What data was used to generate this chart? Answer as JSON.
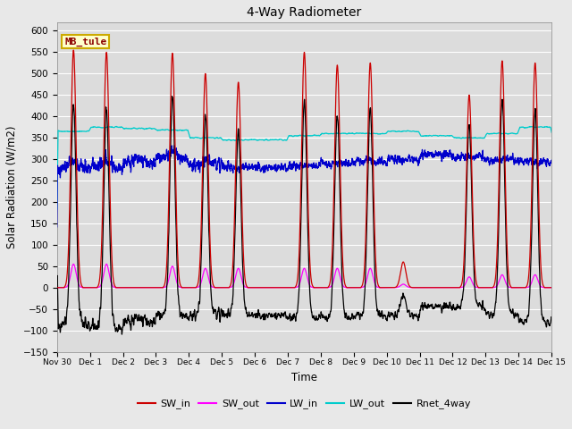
{
  "title": "4-Way Radiometer",
  "xlabel": "Time",
  "ylabel": "Solar Radiation (W/m2)",
  "ylim": [
    -150,
    620
  ],
  "yticks": [
    -150,
    -100,
    -50,
    0,
    50,
    100,
    150,
    200,
    250,
    300,
    350,
    400,
    450,
    500,
    550,
    600
  ],
  "xtick_labels": [
    "Nov 30",
    "Dec 1",
    "Dec 2",
    "Dec 3",
    "Dec 4",
    "Dec 5",
    "Dec 6",
    "Dec 7",
    "Dec 8",
    "Dec 9",
    "Dec 10",
    "Dec 11",
    "Dec 12",
    "Dec 13",
    "Dec 14",
    "Dec 15"
  ],
  "station_label": "MB_tule",
  "colors": {
    "SW_in": "#cc0000",
    "SW_out": "#ff00ff",
    "LW_in": "#0000cc",
    "LW_out": "#00cccc",
    "Rnet_4way": "#000000"
  },
  "fig_bg": "#e8e8e8",
  "plot_bg": "#dcdcdc",
  "grid_color": "#ffffff",
  "n_days": 16,
  "pts_per_day": 288
}
